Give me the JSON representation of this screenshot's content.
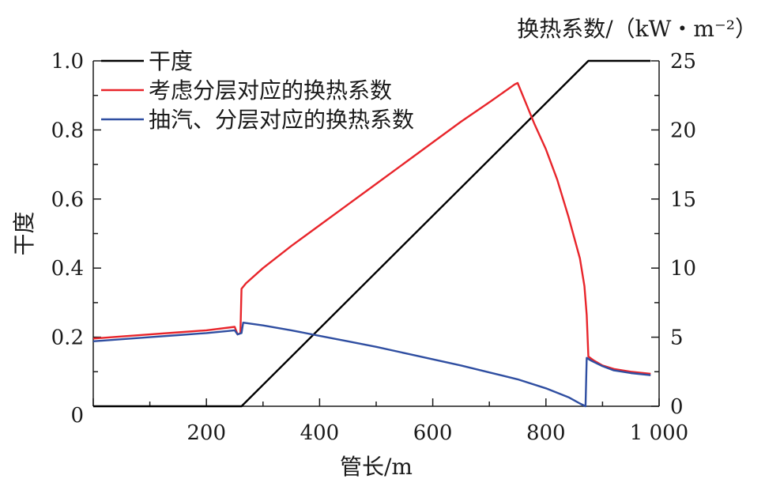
{
  "chart_data": {
    "type": "line",
    "xlabel": "管长/m",
    "ylabel_left": "干度",
    "ylabel_right": "换热系数/（kW・m⁻²）",
    "xlim": [
      0,
      1000
    ],
    "ylim_left": [
      0,
      1.0
    ],
    "ylim_right": [
      0,
      25
    ],
    "x_ticks": [
      200,
      400,
      600,
      800,
      1000
    ],
    "x_tick_labels": [
      "200",
      "400",
      "600",
      "800",
      "1 000"
    ],
    "y_left_ticks": [
      0,
      0.2,
      0.4,
      0.6,
      0.8,
      1.0
    ],
    "y_left_tick_labels": [
      "0",
      "0.2",
      "0.4",
      "0.6",
      "0.8",
      "1.0"
    ],
    "y_right_ticks": [
      0,
      5,
      10,
      15,
      20,
      25
    ],
    "y_right_tick_labels": [
      "0",
      "5",
      "10",
      "15",
      "20",
      "25"
    ],
    "grid": false,
    "legend_position": "top-left",
    "series": [
      {
        "name": "干度",
        "axis": "left",
        "color": "#000000",
        "points": [
          [
            0,
            0
          ],
          [
            262,
            0
          ],
          [
            875,
            1.0
          ],
          [
            985,
            1.0
          ]
        ]
      },
      {
        "name": "考虑分层对应的换热系数",
        "axis": "right",
        "color": "#e8252b",
        "points": [
          [
            0,
            4.9
          ],
          [
            50,
            5.05
          ],
          [
            100,
            5.2
          ],
          [
            150,
            5.35
          ],
          [
            200,
            5.5
          ],
          [
            250,
            5.75
          ],
          [
            255,
            5.2
          ],
          [
            260,
            5.3
          ],
          [
            262,
            8.5
          ],
          [
            270,
            8.9
          ],
          [
            300,
            10.0
          ],
          [
            350,
            11.6
          ],
          [
            400,
            13.1
          ],
          [
            450,
            14.6
          ],
          [
            500,
            16.1
          ],
          [
            550,
            17.6
          ],
          [
            600,
            19.1
          ],
          [
            650,
            20.6
          ],
          [
            700,
            22.0
          ],
          [
            745,
            23.3
          ],
          [
            750,
            23.4
          ],
          [
            780,
            20.4
          ],
          [
            800,
            18.6
          ],
          [
            820,
            16.4
          ],
          [
            840,
            13.7
          ],
          [
            860,
            10.7
          ],
          [
            868,
            8.7
          ],
          [
            872,
            6.6
          ],
          [
            875,
            3.6
          ],
          [
            885,
            3.3
          ],
          [
            900,
            2.95
          ],
          [
            920,
            2.7
          ],
          [
            950,
            2.5
          ],
          [
            985,
            2.35
          ]
        ]
      },
      {
        "name": "抽汽、分层对应的换热系数",
        "axis": "right",
        "color": "#2f4ea1",
        "points": [
          [
            0,
            4.7
          ],
          [
            50,
            4.85
          ],
          [
            100,
            5.0
          ],
          [
            150,
            5.15
          ],
          [
            200,
            5.3
          ],
          [
            250,
            5.5
          ],
          [
            255,
            5.2
          ],
          [
            262,
            5.3
          ],
          [
            265,
            6.05
          ],
          [
            300,
            5.85
          ],
          [
            350,
            5.5
          ],
          [
            400,
            5.1
          ],
          [
            450,
            4.7
          ],
          [
            500,
            4.3
          ],
          [
            550,
            3.85
          ],
          [
            600,
            3.4
          ],
          [
            650,
            2.95
          ],
          [
            700,
            2.45
          ],
          [
            750,
            1.95
          ],
          [
            800,
            1.3
          ],
          [
            840,
            0.65
          ],
          [
            860,
            0.2
          ],
          [
            870,
            0.0
          ],
          [
            872,
            3.5
          ],
          [
            880,
            3.3
          ],
          [
            900,
            2.9
          ],
          [
            920,
            2.6
          ],
          [
            950,
            2.4
          ],
          [
            985,
            2.25
          ]
        ]
      }
    ]
  }
}
